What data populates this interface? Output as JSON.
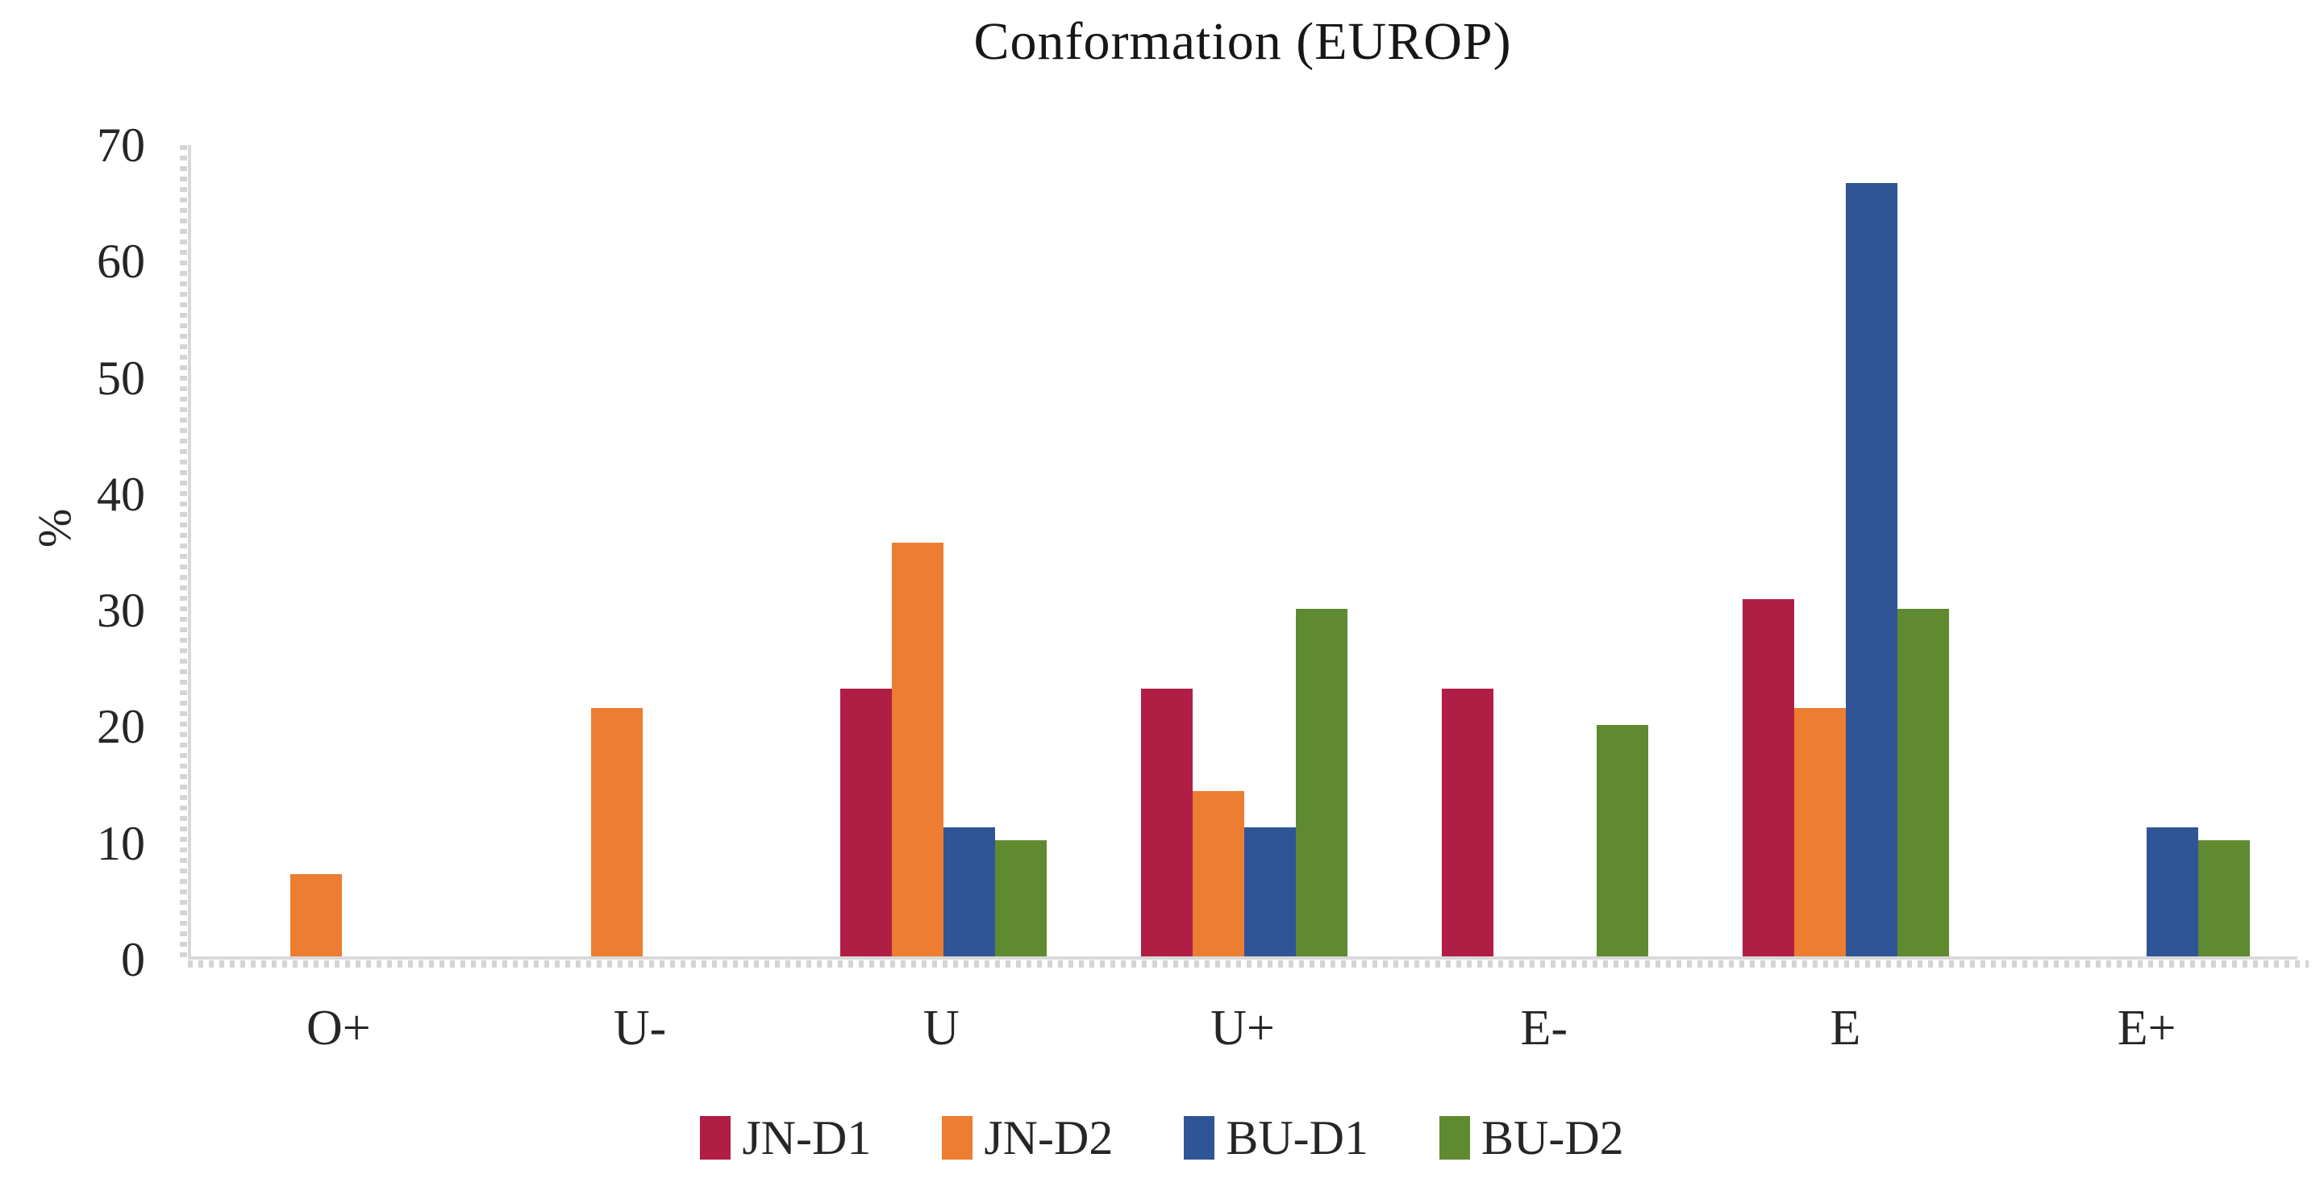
{
  "chart_data": {
    "type": "bar",
    "title": "Conformation (EUROP)",
    "xlabel": "",
    "ylabel": "%",
    "ylim": [
      0,
      70
    ],
    "yticks": [
      0,
      10,
      20,
      30,
      40,
      50,
      60,
      70
    ],
    "grid": false,
    "legend_position": "bottom",
    "axis_color": "#D9D9D9",
    "categories": [
      "O+",
      "U-",
      "U",
      "U+",
      "E-",
      "E",
      "E+"
    ],
    "series": [
      {
        "name": "JN-D1",
        "color": "#B01E45",
        "values": [
          0,
          0,
          23.1,
          23.1,
          23.1,
          30.8,
          0
        ]
      },
      {
        "name": "JN-D2",
        "color": "#ED7D31",
        "values": [
          7.1,
          21.4,
          35.7,
          14.3,
          0,
          21.4,
          0
        ]
      },
      {
        "name": "BU-D1",
        "color": "#2F5597",
        "values": [
          0,
          0,
          11.1,
          11.1,
          0,
          66.7,
          11.1
        ]
      },
      {
        "name": "BU-D2",
        "color": "#5F8A30",
        "values": [
          0,
          0,
          10,
          30,
          20,
          30,
          10
        ]
      }
    ]
  }
}
